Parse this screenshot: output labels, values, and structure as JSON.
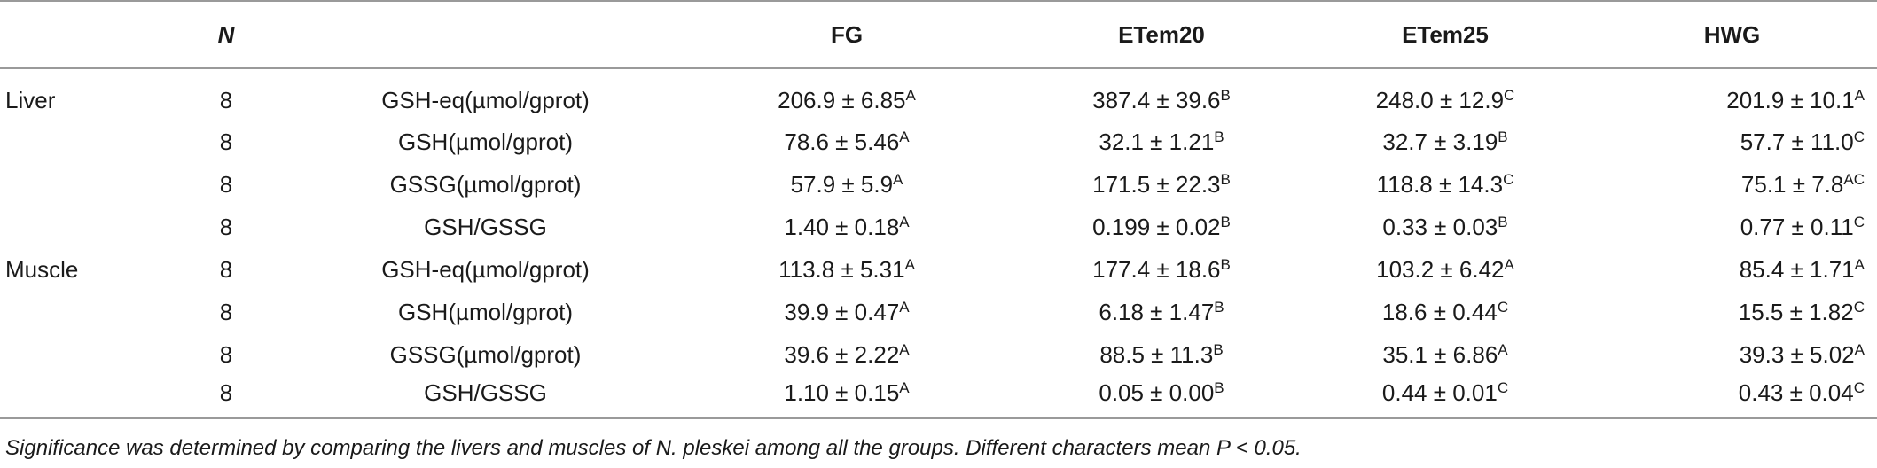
{
  "header": {
    "tissue": "",
    "n": "N",
    "parameter": "",
    "fg": "FG",
    "etem20": "ETem20",
    "etem25": "ETem25",
    "hwg": "HWG"
  },
  "rows": [
    {
      "tissue": "Liver",
      "n": "8",
      "parameter": "GSH-eq(µmol/gprot)",
      "fg": {
        "v": "206.9 ± 6.85",
        "s": "A"
      },
      "etem20": {
        "v": "387.4 ± 39.6",
        "s": "B"
      },
      "etem25": {
        "v": "248.0 ± 12.9",
        "s": "C"
      },
      "hwg": {
        "v": "201.9 ± 10.1",
        "s": "A"
      }
    },
    {
      "tissue": "",
      "n": "8",
      "parameter": "GSH(µmol/gprot)",
      "fg": {
        "v": "78.6 ± 5.46",
        "s": "A"
      },
      "etem20": {
        "v": "32.1 ± 1.21",
        "s": "B"
      },
      "etem25": {
        "v": "32.7 ± 3.19",
        "s": "B"
      },
      "hwg": {
        "v": "57.7 ± 11.0",
        "s": "C"
      }
    },
    {
      "tissue": "",
      "n": "8",
      "parameter": "GSSG(µmol/gprot)",
      "fg": {
        "v": "57.9 ± 5.9",
        "s": "A"
      },
      "etem20": {
        "v": "171.5 ± 22.3",
        "s": "B"
      },
      "etem25": {
        "v": "118.8 ± 14.3",
        "s": "C"
      },
      "hwg": {
        "v": "75.1 ± 7.8",
        "s": "AC"
      }
    },
    {
      "tissue": "",
      "n": "8",
      "parameter": "GSH/GSSG",
      "fg": {
        "v": "1.40 ± 0.18",
        "s": "A"
      },
      "etem20": {
        "v": "0.199 ± 0.02",
        "s": "B"
      },
      "etem25": {
        "v": "0.33 ± 0.03",
        "s": "B"
      },
      "hwg": {
        "v": "0.77 ± 0.11",
        "s": "C"
      }
    },
    {
      "tissue": "Muscle",
      "n": "8",
      "parameter": "GSH-eq(µmol/gprot)",
      "fg": {
        "v": "113.8 ± 5.31",
        "s": "A"
      },
      "etem20": {
        "v": "177.4 ± 18.6",
        "s": "B"
      },
      "etem25": {
        "v": "103.2 ± 6.42",
        "s": "A"
      },
      "hwg": {
        "v": "85.4 ± 1.71",
        "s": "A"
      }
    },
    {
      "tissue": "",
      "n": "8",
      "parameter": "GSH(µmol/gprot)",
      "fg": {
        "v": "39.9 ± 0.47",
        "s": "A"
      },
      "etem20": {
        "v": "6.18 ± 1.47",
        "s": "B"
      },
      "etem25": {
        "v": "18.6 ± 0.44",
        "s": "C"
      },
      "hwg": {
        "v": "15.5 ± 1.82",
        "s": "C"
      }
    },
    {
      "tissue": "",
      "n": "8",
      "parameter": "GSSG(µmol/gprot)",
      "fg": {
        "v": "39.6 ± 2.22",
        "s": "A"
      },
      "etem20": {
        "v": "88.5 ± 11.3",
        "s": "B"
      },
      "etem25": {
        "v": "35.1 ± 6.86",
        "s": "A"
      },
      "hwg": {
        "v": "39.3 ± 5.02",
        "s": "A"
      }
    },
    {
      "tissue": "",
      "n": "8",
      "parameter": "GSH/GSSG",
      "fg": {
        "v": "1.10 ± 0.15",
        "s": "A"
      },
      "etem20": {
        "v": "0.05 ± 0.00",
        "s": "B"
      },
      "etem25": {
        "v": "0.44 ± 0.01",
        "s": "C"
      },
      "hwg": {
        "v": "0.43 ± 0.04",
        "s": "C"
      }
    }
  ],
  "footnote": "Significance was determined by comparing the livers and muscles of N. pleskei among all the groups. Different characters mean P < 0.05."
}
